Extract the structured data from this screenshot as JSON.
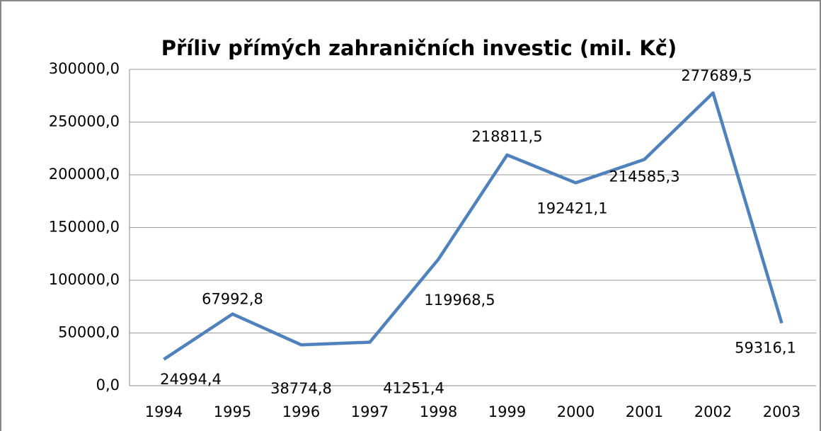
{
  "chart_data": {
    "type": "line",
    "title": "Příliv přímých zahraničních investic (mil. Kč)",
    "categories": [
      "1994",
      "1995",
      "1996",
      "1997",
      "1998",
      "1999",
      "2000",
      "2001",
      "2002",
      "2003"
    ],
    "series": [
      {
        "name": "Příliv přímých zahraničních investic (mil. Kč)",
        "color": "#4f81bd",
        "values": [
          24994.4,
          67992.8,
          38774.8,
          41251.4,
          119968.5,
          218811.5,
          192421.1,
          214585.3,
          277689.5,
          59316.1
        ],
        "value_labels": [
          "24994,4",
          "67992,8",
          "38774,8",
          "41251,4",
          "119968,5",
          "218811,5",
          "192421,1",
          "214585,3",
          "277689,5",
          "59316,1"
        ]
      }
    ],
    "ylim": [
      0,
      300000
    ],
    "yticks": [
      {
        "value": 0,
        "label": "0,0"
      },
      {
        "value": 50000,
        "label": "50000,0"
      },
      {
        "value": 100000,
        "label": "100000,0"
      },
      {
        "value": 150000,
        "label": "150000,0"
      },
      {
        "value": 200000,
        "label": "200000,0"
      },
      {
        "value": 250000,
        "label": "250000,0"
      },
      {
        "value": 300000,
        "label": "300000,0"
      }
    ],
    "grid": true
  }
}
